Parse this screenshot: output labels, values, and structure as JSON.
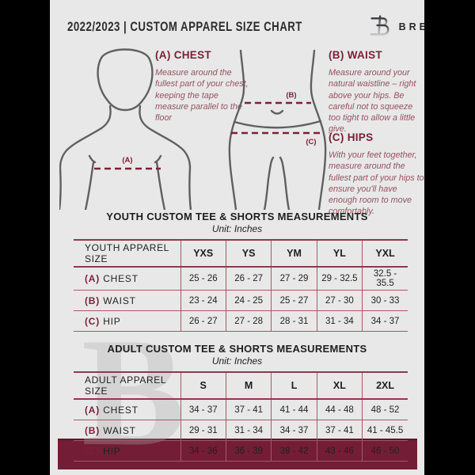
{
  "header": {
    "title": "2022/2023  |  CUSTOM APPAREL SIZE CHART",
    "brand": "BREAKAWAY"
  },
  "measurements": [
    {
      "key": "(A)",
      "name": "CHEST",
      "description": "Measure around the fullest part of your chest, keeping the tape measure parallel to the floor"
    },
    {
      "key": "(B)",
      "name": "WAIST",
      "description": "Measure around your natural waistline – right above your hips. Be careful not to squeeze too tight to allow a little give."
    },
    {
      "key": "(C)",
      "name": "HIPS",
      "description": "With your feet together, measure around the fullest part of your hips to ensure you'll have enough room to move comfortably."
    }
  ],
  "measurement_headings": {
    "chest": "(A) CHEST",
    "waist": "(B) WAIST",
    "hips": "(C) HIPS"
  },
  "diagram_labels": {
    "chest": "(A)",
    "waist": "(B)",
    "hips": "(C)"
  },
  "tables": [
    {
      "title": "YOUTH CUSTOM TEE & SHORTS MEASUREMENTS",
      "unit": "Unit: Inches",
      "header_label": "YOUTH APPAREL SIZE",
      "columns": [
        "YXS",
        "YS",
        "YM",
        "YL",
        "YXL"
      ],
      "rows": [
        {
          "key": "(A)",
          "label": "CHEST",
          "values": [
            "25 - 26",
            "26 - 27",
            "27 - 29",
            "29 - 32.5",
            "32.5 - 35.5"
          ]
        },
        {
          "key": "(B)",
          "label": "WAIST",
          "values": [
            "23 - 24",
            "24 - 25",
            "25 - 27",
            "27 - 30",
            "30 - 33"
          ]
        },
        {
          "key": "(C)",
          "label": "HIP",
          "values": [
            "26 - 27",
            "27 - 28",
            "28 - 31",
            "31 - 34",
            "34 - 37"
          ]
        }
      ]
    },
    {
      "title": "ADULT CUSTOM TEE & SHORTS MEASUREMENTS",
      "unit": "Unit: Inches",
      "header_label": "ADULT APPAREL SIZE",
      "columns": [
        "S",
        "M",
        "L",
        "XL",
        "2XL"
      ],
      "rows": [
        {
          "key": "(A)",
          "label": "CHEST",
          "values": [
            "34 - 37",
            "37 - 41",
            "41 - 44",
            "44 - 48",
            "48 - 52"
          ]
        },
        {
          "key": "(B)",
          "label": "WAIST",
          "values": [
            "29 - 31",
            "31 - 34",
            "34 - 37",
            "37 - 41",
            "41 - 45.5"
          ]
        },
        {
          "key": "(C)",
          "label": "HIP",
          "values": [
            "34 - 36",
            "36 - 39",
            "39 - 42",
            "43 - 46",
            "46 - 50"
          ]
        }
      ]
    }
  ],
  "watermark": "B",
  "colors": {
    "page_bg": "#e8e8e8",
    "letterbox": "#000000",
    "accent_maroon": "#7b1f38",
    "footer_maroon": "#731d36",
    "table_line": "#a2596a",
    "note_text": "#955163",
    "figure_gray": "#606063",
    "text_dark": "#1e1e1e"
  }
}
